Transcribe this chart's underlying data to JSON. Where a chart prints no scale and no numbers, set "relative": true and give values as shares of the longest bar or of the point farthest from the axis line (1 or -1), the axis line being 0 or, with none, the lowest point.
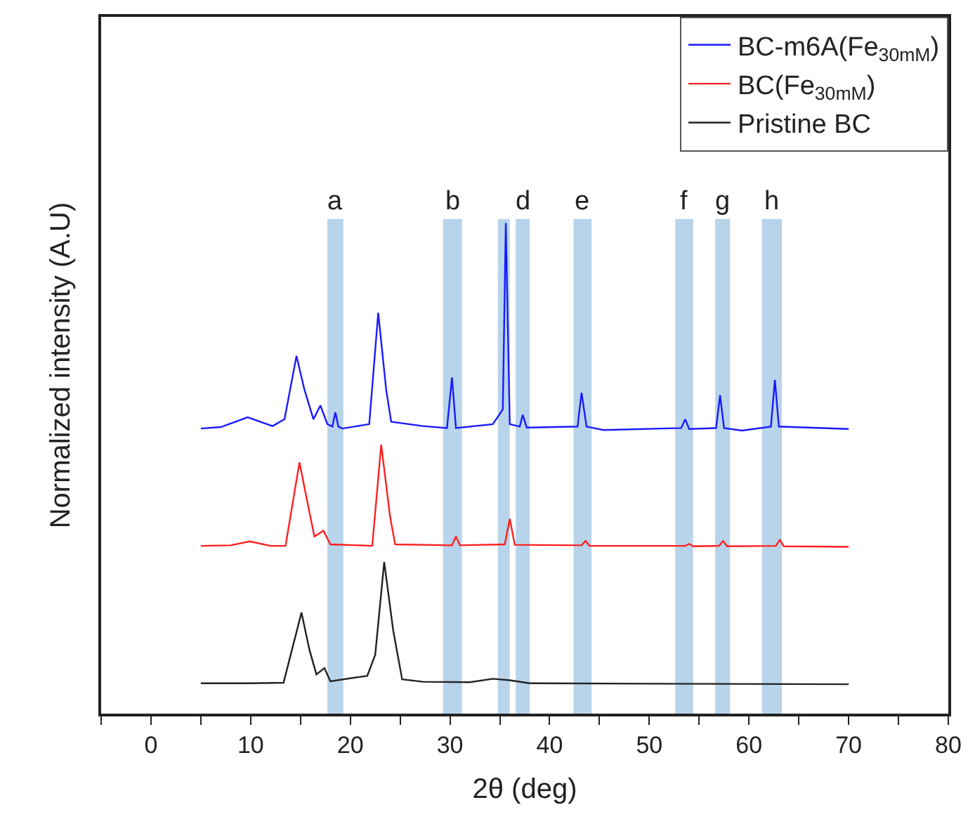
{
  "chart_data": {
    "type": "line",
    "relative": true,
    "xlabel": "2θ (deg)",
    "ylabel": "Normalized intensity (A.U)",
    "xlim": [
      -5,
      80
    ],
    "xticks": [
      {
        "value": -5,
        "label": null
      },
      0,
      {
        "value": 5,
        "label": null
      },
      10,
      {
        "value": 15,
        "label": null
      },
      20,
      {
        "value": 25,
        "label": null
      },
      30,
      {
        "value": 35,
        "label": null
      },
      40,
      {
        "value": 45,
        "label": null
      },
      50,
      {
        "value": 55,
        "label": null
      },
      60,
      {
        "value": 65,
        "label": null
      },
      70,
      {
        "value": 75,
        "label": null
      },
      80
    ],
    "tick_labels": "x",
    "grid": false,
    "legend": "top right",
    "marker": "none",
    "line_style": "solid",
    "series": [
      {
        "name": "BC-m6A(Fe$_{30mM}$)",
        "color": "#1a1aff",
        "x": [
          5,
          7,
          9.7,
          12.2,
          13.4,
          14.6,
          15.4,
          16.3,
          17.0,
          17.7,
          18.2,
          18.5,
          18.8,
          19.2,
          21.9,
          22.8,
          23.6,
          24.1,
          27.3,
          29.7,
          30.2,
          30.6,
          34.3,
          35.3,
          35.6,
          36.0,
          37.0,
          37.3,
          37.7,
          42.8,
          43.2,
          43.7,
          45.4,
          53.2,
          53.6,
          54.0,
          56.7,
          57.1,
          57.5,
          59.3,
          62.2,
          62.6,
          63.0,
          70
        ],
        "values": [
          0.581,
          0.584,
          0.604,
          0.586,
          0.6,
          0.729,
          0.66,
          0.6,
          0.628,
          0.59,
          0.585,
          0.614,
          0.585,
          0.581,
          0.59,
          0.817,
          0.66,
          0.595,
          0.586,
          0.582,
          0.685,
          0.582,
          0.59,
          0.62,
          1.0,
          0.59,
          0.585,
          0.609,
          0.583,
          0.585,
          0.654,
          0.585,
          0.578,
          0.582,
          0.6,
          0.58,
          0.582,
          0.649,
          0.582,
          0.577,
          0.585,
          0.68,
          0.585,
          0.58
        ]
      },
      {
        "name": "BC(Fe$_{30mM}$)",
        "color": "#ff2020",
        "x": [
          5,
          8,
          9.9,
          12,
          13.5,
          14.9,
          15.8,
          16.4,
          17.3,
          18.0,
          22.2,
          23.1,
          24.0,
          24.5,
          30.2,
          30.6,
          31.0,
          35.5,
          36.0,
          36.5,
          43.2,
          43.6,
          44.0,
          53.6,
          54.0,
          54.4,
          57.0,
          57.4,
          57.8,
          62.7,
          63.1,
          63.5,
          70
        ],
        "values": [
          0.342,
          0.343,
          0.351,
          0.342,
          0.342,
          0.512,
          0.42,
          0.361,
          0.373,
          0.345,
          0.342,
          0.548,
          0.4,
          0.345,
          0.343,
          0.361,
          0.343,
          0.345,
          0.397,
          0.344,
          0.343,
          0.352,
          0.342,
          0.342,
          0.346,
          0.341,
          0.342,
          0.352,
          0.341,
          0.342,
          0.354,
          0.341,
          0.34
        ]
      },
      {
        "name": "Pristine BC",
        "color": "#222222",
        "x": [
          5,
          10,
          13.3,
          15.1,
          15.9,
          16.6,
          17.4,
          18.0,
          21.7,
          22.5,
          23.4,
          24.3,
          25.2,
          27.3,
          32,
          34.3,
          36,
          38,
          50,
          70
        ],
        "values": [
          0.062,
          0.062,
          0.063,
          0.206,
          0.13,
          0.08,
          0.093,
          0.066,
          0.077,
          0.12,
          0.309,
          0.17,
          0.07,
          0.065,
          0.064,
          0.071,
          0.068,
          0.062,
          0.061,
          0.06
        ]
      }
    ],
    "bands": [
      {
        "axis": "x",
        "from": 17.7,
        "to": 19.3,
        "label": "a",
        "color": "#b8d4ea"
      },
      {
        "axis": "x",
        "from": 29.3,
        "to": 31.2,
        "label": "b",
        "color": "#b8d4ea"
      },
      {
        "axis": "x",
        "from": 34.8,
        "to": 36.0,
        "label": null,
        "color": "#b8d4ea"
      },
      {
        "axis": "x",
        "from": 36.6,
        "to": 38.0,
        "label": "d",
        "color": "#b8d4ea"
      },
      {
        "axis": "x",
        "from": 42.4,
        "to": 44.2,
        "label": "e",
        "color": "#b8d4ea"
      },
      {
        "axis": "x",
        "from": 52.6,
        "to": 54.4,
        "label": "f",
        "color": "#b8d4ea"
      },
      {
        "axis": "x",
        "from": 56.6,
        "to": 58.1,
        "label": "g",
        "color": "#b8d4ea"
      },
      {
        "axis": "x",
        "from": 61.3,
        "to": 63.3,
        "label": "h",
        "color": "#b8d4ea"
      }
    ]
  }
}
